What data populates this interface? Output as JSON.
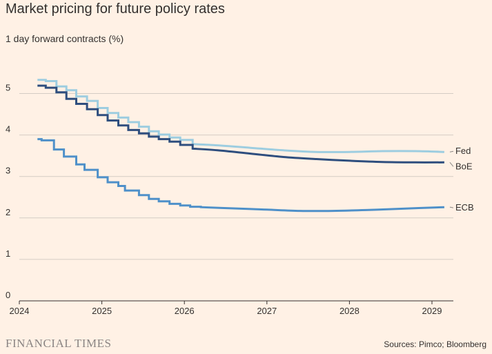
{
  "chart_data": {
    "type": "line",
    "title": "Market pricing for future policy rates",
    "subtitle": "1 day forward contracts (%)",
    "xlabel": "",
    "ylabel": "",
    "xlim": [
      2024,
      2029.25
    ],
    "ylim": [
      0,
      5.5
    ],
    "x_ticks": [
      {
        "label": "2024",
        "value": 2024
      },
      {
        "label": "2025",
        "value": 2025
      },
      {
        "label": "2026",
        "value": 2026
      },
      {
        "label": "2027",
        "value": 2027
      },
      {
        "label": "2028",
        "value": 2028
      },
      {
        "label": "2029",
        "value": 2029
      }
    ],
    "y_ticks": [
      {
        "label": "0",
        "value": 0
      },
      {
        "label": "1",
        "value": 1
      },
      {
        "label": "2",
        "value": 2
      },
      {
        "label": "3",
        "value": 3
      },
      {
        "label": "4",
        "value": 4
      },
      {
        "label": "5",
        "value": 5
      }
    ],
    "grid": true,
    "series": [
      {
        "name": "Fed",
        "color": "#9DCDE0",
        "step_points": [
          [
            2024.22,
            5.33
          ],
          [
            2024.32,
            5.3
          ],
          [
            2024.45,
            5.17
          ],
          [
            2024.57,
            5.08
          ],
          [
            2024.69,
            4.93
          ],
          [
            2024.82,
            4.82
          ],
          [
            2024.95,
            4.65
          ],
          [
            2025.07,
            4.53
          ],
          [
            2025.2,
            4.42
          ],
          [
            2025.32,
            4.31
          ],
          [
            2025.45,
            4.2
          ],
          [
            2025.57,
            4.09
          ],
          [
            2025.69,
            4.01
          ],
          [
            2025.82,
            3.94
          ],
          [
            2025.95,
            3.88
          ]
        ],
        "smooth_points": [
          [
            2026.1,
            3.78
          ],
          [
            2026.4,
            3.75
          ],
          [
            2026.8,
            3.69
          ],
          [
            2027.2,
            3.63
          ],
          [
            2027.6,
            3.59
          ],
          [
            2028.0,
            3.59
          ],
          [
            2028.4,
            3.61
          ],
          [
            2028.8,
            3.61
          ],
          [
            2029.15,
            3.59
          ]
        ]
      },
      {
        "name": "BoE",
        "color": "#2E4E7E",
        "step_points": [
          [
            2024.22,
            5.19
          ],
          [
            2024.32,
            5.14
          ],
          [
            2024.45,
            5.03
          ],
          [
            2024.57,
            4.87
          ],
          [
            2024.69,
            4.75
          ],
          [
            2024.82,
            4.62
          ],
          [
            2024.95,
            4.48
          ],
          [
            2025.07,
            4.35
          ],
          [
            2025.2,
            4.23
          ],
          [
            2025.32,
            4.12
          ],
          [
            2025.45,
            4.04
          ],
          [
            2025.57,
            3.96
          ],
          [
            2025.69,
            3.9
          ],
          [
            2025.82,
            3.84
          ],
          [
            2025.95,
            3.76
          ]
        ],
        "smooth_points": [
          [
            2026.1,
            3.67
          ],
          [
            2026.4,
            3.63
          ],
          [
            2026.8,
            3.55
          ],
          [
            2027.2,
            3.47
          ],
          [
            2027.6,
            3.42
          ],
          [
            2028.0,
            3.38
          ],
          [
            2028.4,
            3.35
          ],
          [
            2028.8,
            3.34
          ],
          [
            2029.15,
            3.34
          ]
        ]
      },
      {
        "name": "ECB",
        "color": "#4E90C9",
        "step_points": [
          [
            2024.22,
            3.9
          ],
          [
            2024.27,
            3.87
          ],
          [
            2024.42,
            3.65
          ],
          [
            2024.54,
            3.48
          ],
          [
            2024.69,
            3.29
          ],
          [
            2024.79,
            3.16
          ],
          [
            2024.95,
            2.98
          ],
          [
            2025.07,
            2.86
          ],
          [
            2025.2,
            2.77
          ],
          [
            2025.28,
            2.66
          ],
          [
            2025.45,
            2.55
          ],
          [
            2025.57,
            2.46
          ],
          [
            2025.69,
            2.4
          ],
          [
            2025.82,
            2.34
          ],
          [
            2025.95,
            2.3
          ],
          [
            2026.07,
            2.27
          ]
        ],
        "smooth_points": [
          [
            2026.2,
            2.26
          ],
          [
            2026.6,
            2.23
          ],
          [
            2027.0,
            2.2
          ],
          [
            2027.4,
            2.17
          ],
          [
            2027.8,
            2.17
          ],
          [
            2028.2,
            2.19
          ],
          [
            2028.6,
            2.22
          ],
          [
            2029.15,
            2.26
          ]
        ]
      }
    ],
    "annotations": [
      {
        "series": "Fed",
        "text": "Fed"
      },
      {
        "series": "BoE",
        "text": "BoE"
      },
      {
        "series": "ECB",
        "text": "ECB"
      }
    ]
  },
  "footer": {
    "brand": "FINANCIAL TIMES",
    "source": "Sources: Pimco; Bloomberg"
  }
}
